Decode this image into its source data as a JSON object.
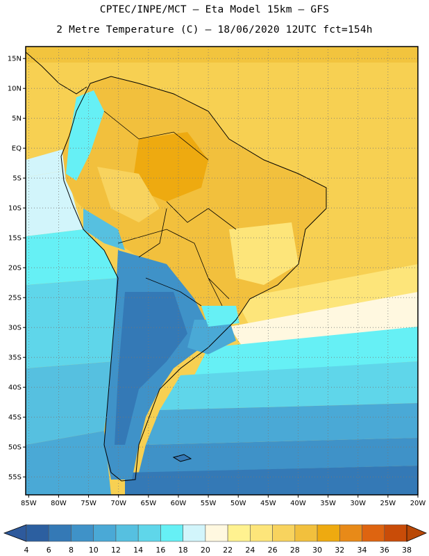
{
  "header": {
    "line1": "CPTEC/INPE/MCT –  Eta Model 15km – GFS",
    "line2": "2 Metre Temperature (C) – 18/06/2020 12UTC fct=154h"
  },
  "map": {
    "lat_labels": [
      "15N",
      "10N",
      "5N",
      "EQ",
      "5S",
      "10S",
      "15S",
      "20S",
      "25S",
      "30S",
      "35S",
      "40S",
      "45S",
      "50S",
      "55S"
    ],
    "lon_labels": [
      "85W",
      "80W",
      "75W",
      "70W",
      "65W",
      "60W",
      "55W",
      "50W",
      "45W",
      "40W",
      "35W",
      "30W",
      "25W",
      "20W"
    ],
    "lat_range": [
      17,
      -58
    ],
    "lon_range": [
      -85.5,
      -20
    ]
  },
  "colorbar": {
    "labels": [
      "4",
      "6",
      "8",
      "10",
      "12",
      "14",
      "16",
      "18",
      "20",
      "22",
      "24",
      "26",
      "28",
      "30",
      "32",
      "34",
      "36",
      "38"
    ],
    "colors": [
      "#2c5fa0",
      "#3479b6",
      "#3f92c8",
      "#4aa9d6",
      "#56c0e0",
      "#5fd6ea",
      "#66f0f5",
      "#d2f5fb",
      "#fff8e0",
      "#fff290",
      "#fde57a",
      "#f8d35e",
      "#f2c03d",
      "#eeaa10",
      "#e88a18",
      "#de6410",
      "#c94c08"
    ],
    "low_color": "#2e5a9c",
    "high_color": "#b94806"
  }
}
